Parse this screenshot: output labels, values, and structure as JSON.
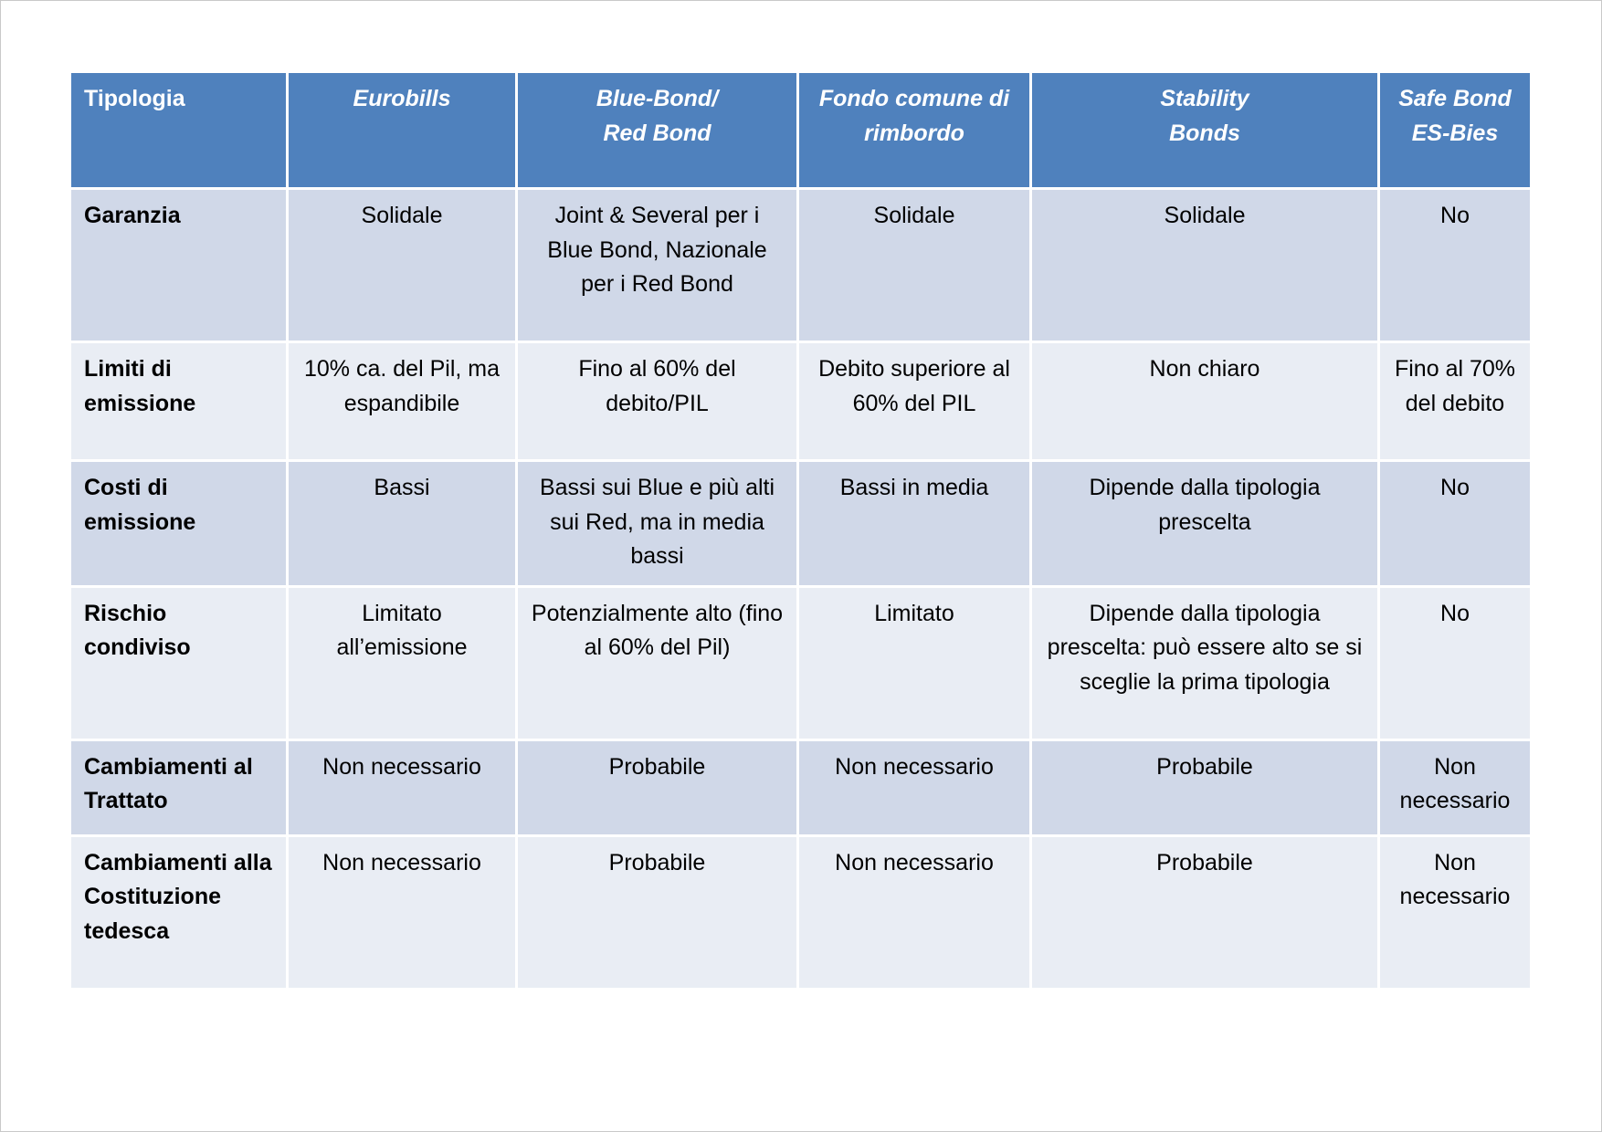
{
  "table": {
    "headers": [
      "Tipologia",
      "Eurobills",
      "Blue-Bond/\nRed Bond",
      "Fondo comune di rimbordo",
      "Stability\nBonds",
      "Safe Bond\nES-Bies"
    ],
    "rows": [
      {
        "label": "Garanzia",
        "cells": [
          "Solidale",
          "Joint & Several per i Blue Bond, Nazionale per i Red Bond",
          "Solidale",
          "Solidale",
          "No"
        ]
      },
      {
        "label": "Limiti di emissione",
        "cells": [
          "10% ca. del Pil, ma espandibile",
          "Fino al 60% del debito/PIL",
          "Debito superiore al 60% del PIL",
          "Non chiaro",
          "Fino al 70% del debito"
        ]
      },
      {
        "label": "Costi di emissione",
        "cells": [
          "Bassi",
          "Bassi sui Blue e più alti sui Red, ma in media bassi",
          "Bassi in media",
          "Dipende dalla tipologia prescelta",
          "No"
        ]
      },
      {
        "label": "Rischio condiviso",
        "cells": [
          "Limitato all’emissione",
          "Potenzialmente alto (fino al 60% del Pil)",
          "Limitato",
          "Dipende dalla tipologia prescelta: può essere alto se si sceglie la prima tipologia",
          "No"
        ]
      },
      {
        "label": "Cambiamenti al Trattato",
        "cells": [
          "Non necessario",
          "Probabile",
          "Non necessario",
          "Probabile",
          "Non necessario"
        ]
      },
      {
        "label": "Cambiamenti alla Costituzione tedesca",
        "cells": [
          "Non necessario",
          "Probabile",
          "Non necessario",
          "Probabile",
          "Non necessario"
        ]
      }
    ]
  },
  "colors": {
    "header_bg": "#4f81bd",
    "row_odd_bg": "#d0d8e8",
    "row_even_bg": "#e9edf4"
  }
}
